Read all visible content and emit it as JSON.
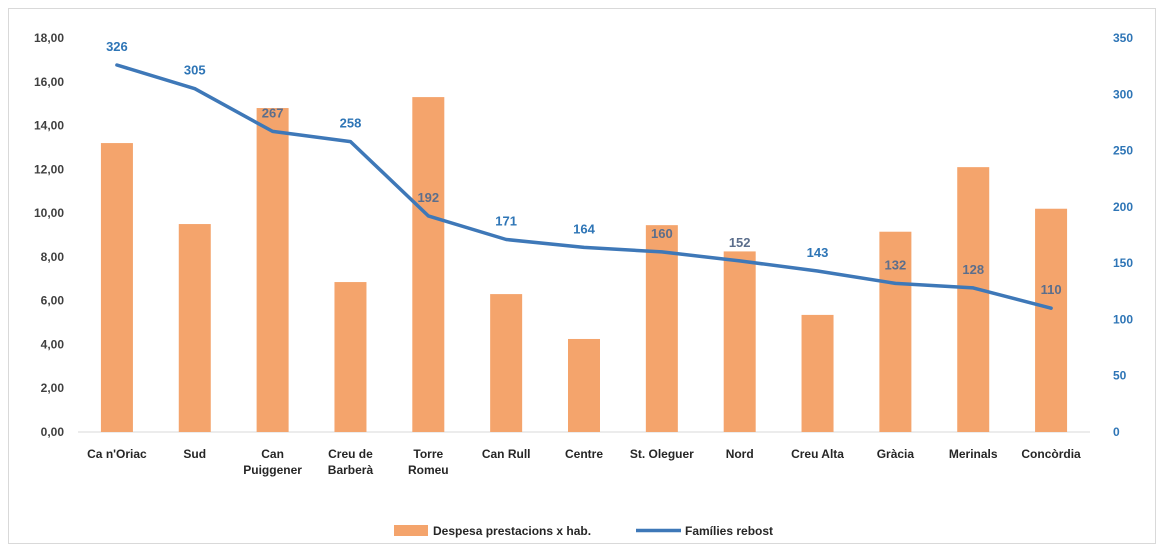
{
  "chart_data": {
    "type": "bar",
    "title": "",
    "categories": [
      [
        "Ca n'Oriac"
      ],
      [
        "Sud"
      ],
      [
        "Can",
        "Puiggener"
      ],
      [
        "Creu de",
        "Barberà"
      ],
      [
        "Torre",
        "Romeu"
      ],
      [
        "Can Rull"
      ],
      [
        "Centre"
      ],
      [
        "St. Oleguer"
      ],
      [
        "Nord"
      ],
      [
        "Creu Alta"
      ],
      [
        "Gràcia"
      ],
      [
        "Merinals"
      ],
      [
        "Concòrdia"
      ]
    ],
    "series": [
      {
        "name": "Despesa prestacions x hab.",
        "type": "bar",
        "axis": "left",
        "color": "#f4a46c",
        "values": [
          13.2,
          9.5,
          14.8,
          6.85,
          15.3,
          6.3,
          4.25,
          9.45,
          8.25,
          5.35,
          9.15,
          12.1,
          10.2
        ]
      },
      {
        "name": "Famílies rebost",
        "type": "line",
        "axis": "right",
        "color": "#3e78b8",
        "values": [
          326,
          305,
          267,
          258,
          192,
          171,
          164,
          160,
          152,
          143,
          132,
          128,
          110
        ],
        "data_labels": [
          "326",
          "305",
          "267",
          "258",
          "192",
          "171",
          "164",
          "160",
          "152",
          "143",
          "132",
          "128",
          "110"
        ]
      }
    ],
    "y_left": {
      "min": 0,
      "max": 18,
      "step": 2,
      "tick_labels": [
        "0,00",
        "2,00",
        "4,00",
        "6,00",
        "8,00",
        "10,00",
        "12,00",
        "14,00",
        "16,00",
        "18,00"
      ]
    },
    "y_right": {
      "min": 0,
      "max": 350,
      "step": 50,
      "tick_labels": [
        "0",
        "50",
        "100",
        "150",
        "200",
        "250",
        "300",
        "350"
      ],
      "color": "#2e75b6"
    },
    "grid": false,
    "legend": {
      "position": "bottom",
      "items": [
        "Despesa prestacions x hab.",
        "Famílies rebost"
      ]
    }
  }
}
